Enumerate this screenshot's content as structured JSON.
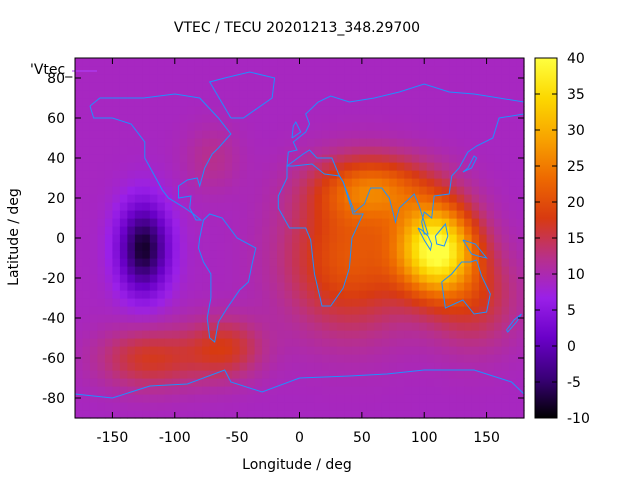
{
  "chart_data": {
    "type": "heatmap",
    "title": "VTEC / TECU 20201213_348.29700",
    "xlabel": "Longitude / deg",
    "ylabel": "Latitude / deg",
    "legend_label": "'Vtec_",
    "xlim": [
      -180,
      180
    ],
    "ylim": [
      -90,
      90
    ],
    "x_ticks": [
      -150,
      -100,
      -50,
      0,
      50,
      100,
      150
    ],
    "y_ticks": [
      -80,
      -60,
      -40,
      -20,
      0,
      20,
      40,
      60,
      80
    ],
    "colorbar": {
      "min": -10,
      "max": 40,
      "ticks": [
        -10,
        -5,
        0,
        5,
        10,
        15,
        20,
        25,
        30,
        35,
        40
      ]
    },
    "colormap": [
      "#000000",
      "#3a0078",
      "#6a00c8",
      "#9a20e8",
      "#b8308a",
      "#d83a10",
      "#ee6a00",
      "#f8a400",
      "#fcd800",
      "#ffff40"
    ],
    "background_level": 9,
    "features": [
      {
        "lon": -125,
        "lat": -5,
        "value": -8,
        "spread_lon": 20,
        "spread_lat": 22
      },
      {
        "lon": -120,
        "lat": -60,
        "value": 17,
        "spread_lon": 40,
        "spread_lat": 15
      },
      {
        "lon": -60,
        "lat": -55,
        "value": 17,
        "spread_lon": 30,
        "spread_lat": 15
      },
      {
        "lon": -70,
        "lat": 40,
        "value": 12,
        "spread_lon": 22,
        "spread_lat": 16
      },
      {
        "lon": 40,
        "lat": -10,
        "value": 21,
        "spread_lon": 50,
        "spread_lat": 35
      },
      {
        "lon": 110,
        "lat": -5,
        "value": 39,
        "spread_lon": 30,
        "spread_lat": 22
      },
      {
        "lon": 60,
        "lat": 25,
        "value": 22,
        "spread_lon": 45,
        "spread_lat": 16
      },
      {
        "lon": 140,
        "lat": -30,
        "value": 16,
        "spread_lon": 35,
        "spread_lat": 25
      }
    ],
    "coastline_color": "#1e90ff"
  }
}
